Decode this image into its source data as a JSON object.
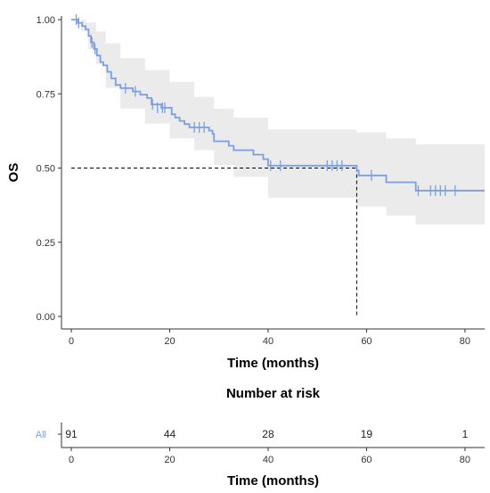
{
  "chart_data": [
    {
      "type": "line",
      "subtype": "kaplan-meier",
      "ylabel": "OS",
      "xlabel": "Time (months)",
      "xlim": [
        -2,
        84
      ],
      "ylim": [
        0,
        1
      ],
      "x_ticks": [
        0,
        20,
        40,
        60,
        80
      ],
      "y_ticks": [
        0,
        0.25,
        0.5,
        0.75,
        1
      ],
      "y_tick_labels": [
        "0.00",
        "0.25",
        "0.50",
        "0.75",
        "1.00"
      ],
      "colors": {
        "curve": "#7b9fe0",
        "ci_band": "#ebebeb",
        "median_line": "#000000"
      },
      "grid": false,
      "series": [
        {
          "name": "All",
          "steps": [
            [
              0,
              1.0
            ],
            [
              1.3,
              0.989
            ],
            [
              2.2,
              0.978
            ],
            [
              2.9,
              0.967
            ],
            [
              3.5,
              0.945
            ],
            [
              4.0,
              0.923
            ],
            [
              4.6,
              0.901
            ],
            [
              5.2,
              0.879
            ],
            [
              5.9,
              0.857
            ],
            [
              6.5,
              0.846
            ],
            [
              7.3,
              0.824
            ],
            [
              8.1,
              0.802
            ],
            [
              9.0,
              0.78
            ],
            [
              10.0,
              0.769
            ],
            [
              12.5,
              0.758
            ],
            [
              14.0,
              0.747
            ],
            [
              15.4,
              0.736
            ],
            [
              16.3,
              0.714
            ],
            [
              18.3,
              0.703
            ],
            [
              20.4,
              0.681
            ],
            [
              21.1,
              0.67
            ],
            [
              22.0,
              0.659
            ],
            [
              23.0,
              0.648
            ],
            [
              24.0,
              0.637
            ],
            [
              28.0,
              0.626
            ],
            [
              28.7,
              0.615
            ],
            [
              29.0,
              0.59
            ],
            [
              32.0,
              0.575
            ],
            [
              33.0,
              0.56
            ],
            [
              37.0,
              0.545
            ],
            [
              39.0,
              0.53
            ],
            [
              40.0,
              0.508
            ],
            [
              58.0,
              0.492
            ],
            [
              58.4,
              0.475
            ],
            [
              64.0,
              0.452
            ],
            [
              70.0,
              0.424
            ],
            [
              84.0,
              0.424
            ]
          ],
          "censored": [
            [
              1.0,
              1.0
            ],
            [
              1.5,
              0.989
            ],
            [
              4.2,
              0.923
            ],
            [
              4.8,
              0.901
            ],
            [
              11.0,
              0.769
            ],
            [
              13.0,
              0.758
            ],
            [
              16.5,
              0.714
            ],
            [
              17.5,
              0.703
            ],
            [
              18.5,
              0.703
            ],
            [
              19.0,
              0.703
            ],
            [
              25.0,
              0.637
            ],
            [
              26.0,
              0.637
            ],
            [
              27.0,
              0.637
            ],
            [
              40.5,
              0.508
            ],
            [
              42.5,
              0.508
            ],
            [
              52.0,
              0.508
            ],
            [
              53.0,
              0.508
            ],
            [
              54.0,
              0.508
            ],
            [
              55.0,
              0.508
            ],
            [
              61.0,
              0.475
            ],
            [
              70.5,
              0.424
            ],
            [
              73.0,
              0.424
            ],
            [
              74.0,
              0.424
            ],
            [
              75.0,
              0.424
            ],
            [
              76.0,
              0.424
            ],
            [
              78.0,
              0.424
            ]
          ],
          "ci_upper": [
            [
              0,
              1.0
            ],
            [
              3.0,
              0.99
            ],
            [
              5.0,
              0.96
            ],
            [
              7.0,
              0.92
            ],
            [
              10.0,
              0.87
            ],
            [
              15.0,
              0.83
            ],
            [
              20.0,
              0.79
            ],
            [
              25.0,
              0.74
            ],
            [
              29.0,
              0.7
            ],
            [
              33.0,
              0.67
            ],
            [
              40.0,
              0.63
            ],
            [
              58.0,
              0.62
            ],
            [
              64.0,
              0.6
            ],
            [
              70.0,
              0.58
            ],
            [
              84.0,
              0.58
            ]
          ],
          "ci_lower": [
            [
              0,
              1.0
            ],
            [
              2.0,
              0.96
            ],
            [
              3.5,
              0.9
            ],
            [
              5.0,
              0.85
            ],
            [
              7.0,
              0.77
            ],
            [
              10.0,
              0.7
            ],
            [
              15.0,
              0.65
            ],
            [
              20.0,
              0.6
            ],
            [
              25.0,
              0.56
            ],
            [
              29.0,
              0.51
            ],
            [
              33.0,
              0.47
            ],
            [
              40.0,
              0.4
            ],
            [
              58.0,
              0.37
            ],
            [
              64.0,
              0.34
            ],
            [
              70.0,
              0.31
            ],
            [
              84.0,
              0.31
            ]
          ]
        }
      ],
      "median_survival": {
        "x": 58,
        "y": 0.5
      }
    },
    {
      "type": "table",
      "title": "Number at risk",
      "xlabel": "Time (months)",
      "x_ticks": [
        0,
        20,
        40,
        60,
        80
      ],
      "rows": [
        {
          "label": "All",
          "times": [
            0,
            20,
            40,
            60,
            80
          ],
          "values": [
            "91",
            "44",
            "28",
            "19",
            "1"
          ]
        }
      ]
    }
  ]
}
